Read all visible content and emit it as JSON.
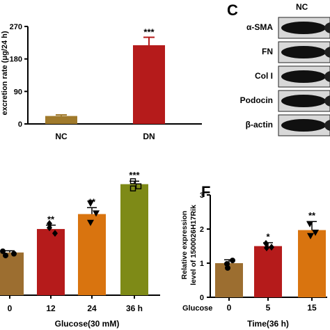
{
  "panels": {
    "C": "C",
    "F": "F"
  },
  "chart_data": [
    {
      "id": "top-left",
      "type": "bar",
      "ylabel_partial": "excretion rate (μg/24 h)",
      "categories": [
        "NC",
        "DN"
      ],
      "values": [
        22,
        218
      ],
      "errors": [
        3,
        22
      ],
      "colors": [
        "#a07a2c",
        "#b51b1b"
      ],
      "ylim": [
        0,
        270
      ],
      "yticks": [
        "0",
        "90",
        "180",
        "270"
      ],
      "sig": [
        "",
        "***"
      ]
    },
    {
      "id": "bottom-left",
      "type": "bar",
      "categories": [
        "0",
        "12",
        "24",
        "36 h"
      ],
      "values": [
        1.0,
        1.55,
        1.9,
        2.6
      ],
      "errors": [
        0.04,
        0.09,
        0.15,
        0.07
      ],
      "colors": [
        "#9c6e30",
        "#b51b1b",
        "#d9740f",
        "#7e8a17"
      ],
      "markers": [
        "circle",
        "diamond",
        "triangle",
        "square"
      ],
      "points": [
        [
          1.03,
          0.97,
          0.93
        ],
        [
          1.68,
          1.45,
          1.58
        ],
        [
          2.15,
          1.92,
          1.7
        ],
        [
          2.67,
          2.55,
          2.5
        ]
      ],
      "sig": [
        "",
        "**",
        "**",
        "***"
      ],
      "xlabel": "Glucose(30 mM)"
    },
    {
      "id": "F",
      "type": "bar",
      "ylabel": "Relative expression level of 1500026H17Rik",
      "row_label": "Glucose",
      "categories": [
        "0",
        "5",
        "15"
      ],
      "values": [
        1.0,
        1.5,
        1.97
      ],
      "errors": [
        0.1,
        0.1,
        0.25
      ],
      "colors": [
        "#9c6e30",
        "#b51b1b",
        "#d9740f"
      ],
      "markers": [
        "circle",
        "diamond",
        "triangle"
      ],
      "points": [
        [
          0.98,
          1.08,
          0.86
        ],
        [
          1.58,
          1.47,
          1.45
        ],
        [
          2.15,
          1.9,
          1.8
        ]
      ],
      "ylim": [
        0,
        3
      ],
      "yticks": [
        "0",
        "1",
        "2",
        "3"
      ],
      "sig": [
        "",
        "*",
        "**"
      ],
      "xlabel": "Time(36 h)"
    }
  ],
  "western_blot": {
    "header": "NC",
    "rows": [
      "α-SMA",
      "FN",
      "Col I",
      "Podocin",
      "β-actin"
    ]
  }
}
